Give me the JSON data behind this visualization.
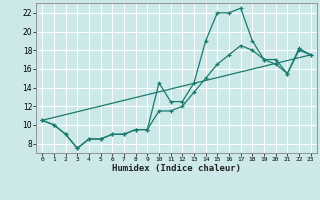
{
  "xlabel": "Humidex (Indice chaleur)",
  "bg_color": "#cce8e8",
  "grid_color": "#ffffff",
  "line_color": "#1a7a6e",
  "xlim": [
    -0.5,
    23.5
  ],
  "ylim": [
    7,
    23
  ],
  "xticks": [
    0,
    1,
    2,
    3,
    4,
    5,
    6,
    7,
    8,
    9,
    10,
    11,
    12,
    13,
    14,
    15,
    16,
    17,
    18,
    19,
    20,
    21,
    22,
    23
  ],
  "yticks": [
    8,
    10,
    12,
    14,
    16,
    18,
    20,
    22
  ],
  "series1_x": [
    0,
    1,
    2,
    3,
    4,
    5,
    6,
    7,
    8,
    9,
    10,
    11,
    12,
    13,
    14,
    15,
    16,
    17,
    18,
    19,
    20,
    21,
    22,
    23
  ],
  "series1_y": [
    10.5,
    10.0,
    9.0,
    7.5,
    8.5,
    8.5,
    9.0,
    9.0,
    9.5,
    9.5,
    14.5,
    12.5,
    12.5,
    14.5,
    19.0,
    22.0,
    22.0,
    22.5,
    19.0,
    17.0,
    17.0,
    15.5,
    18.2,
    17.5
  ],
  "series2_x": [
    0,
    1,
    2,
    3,
    4,
    5,
    6,
    7,
    8,
    9,
    10,
    11,
    12,
    13,
    14,
    15,
    16,
    17,
    18,
    19,
    20,
    21,
    22,
    23
  ],
  "series2_y": [
    10.5,
    10.0,
    9.0,
    7.5,
    8.5,
    8.5,
    9.0,
    9.0,
    9.5,
    9.5,
    11.5,
    11.5,
    12.0,
    13.5,
    15.0,
    16.5,
    17.5,
    18.5,
    18.0,
    17.0,
    16.5,
    15.5,
    18.0,
    17.5
  ],
  "series3_x": [
    0,
    23
  ],
  "series3_y": [
    10.5,
    17.5
  ]
}
